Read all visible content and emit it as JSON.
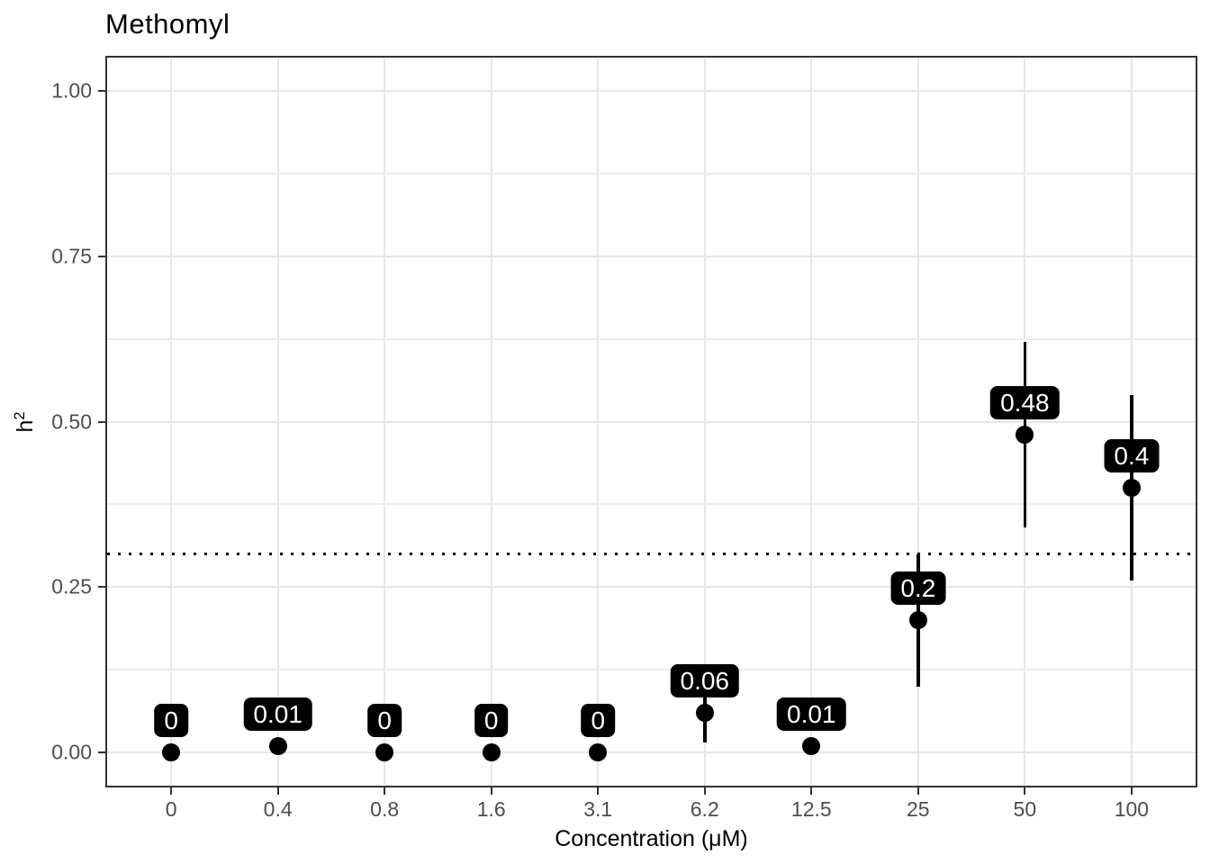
{
  "chart_data": {
    "type": "scatter",
    "subtype": "pointrange",
    "title": "Methomyl",
    "xlabel": "Concentration (μM)",
    "ylabel": "h²",
    "ylabel_base": "h",
    "ylabel_sup": "2",
    "categories": [
      "0",
      "0.4",
      "0.8",
      "1.6",
      "3.1",
      "6.2",
      "12.5",
      "25",
      "50",
      "100"
    ],
    "values": [
      0,
      0.01,
      0,
      0,
      0,
      0.06,
      0.01,
      0.2,
      0.48,
      0.4
    ],
    "point_labels": [
      "0",
      "0.01",
      "0",
      "0",
      "0",
      "0.06",
      "0.01",
      "0.2",
      "0.48",
      "0.4"
    ],
    "ci_low": [
      0,
      0.01,
      0,
      0,
      0,
      0.015,
      0.01,
      0.1,
      0.34,
      0.26
    ],
    "ci_high": [
      0,
      0.01,
      0,
      0,
      0,
      0.105,
      0.01,
      0.3,
      0.62,
      0.54
    ],
    "ytick_labels": [
      "0.00",
      "0.25",
      "0.50",
      "0.75",
      "1.00"
    ],
    "ytick_values": [
      0,
      0.25,
      0.5,
      0.75,
      1.0
    ],
    "yminor_values": [
      0.125,
      0.375,
      0.625,
      0.875
    ],
    "ylim": [
      -0.05,
      1.05
    ],
    "ref_line_y": 0.3,
    "ref_line_style": "dotted",
    "grid": "on",
    "legend": "none",
    "colors": {
      "point": "#000000",
      "label_bg": "#000000",
      "label_text": "#ffffff",
      "grid_major": "#e7e7e7",
      "grid_minor": "#ededed",
      "panel_border": "#333333",
      "tick_label": "#4d4d4d",
      "title_text": "#000000"
    }
  }
}
